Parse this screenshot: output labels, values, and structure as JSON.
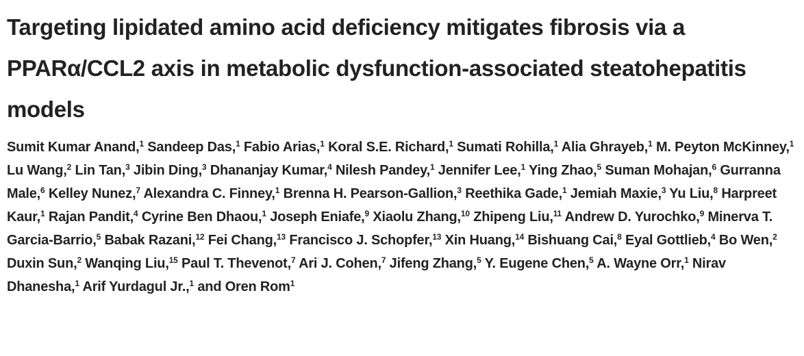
{
  "title": "Targeting lipidated amino acid deficiency mitigates fibrosis via a PPARα/CCL2 axis in metabolic dysfunction-associated steatohepatitis models",
  "authors": [
    {
      "name": "Sumit Kumar Anand,",
      "affiliation": 1
    },
    {
      "name": "Sandeep Das,",
      "affiliation": 1
    },
    {
      "name": "Fabio Arias,",
      "affiliation": 1
    },
    {
      "name": "Koral S.E. Richard,",
      "affiliation": 1
    },
    {
      "name": "Sumati Rohilla,",
      "affiliation": 1
    },
    {
      "name": "Alia Ghrayeb,",
      "affiliation": 1
    },
    {
      "name": "M. Peyton McKinney,",
      "affiliation": 1
    },
    {
      "name": "Lu Wang,",
      "affiliation": 2
    },
    {
      "name": "Lin Tan,",
      "affiliation": 3
    },
    {
      "name": "Jibin Ding,",
      "affiliation": 3
    },
    {
      "name": "Dhananjay Kumar,",
      "affiliation": 4
    },
    {
      "name": "Nilesh Pandey,",
      "affiliation": 1
    },
    {
      "name": "Jennifer Lee,",
      "affiliation": 1
    },
    {
      "name": "Ying Zhao,",
      "affiliation": 5
    },
    {
      "name": "Suman Mohajan,",
      "affiliation": 6
    },
    {
      "name": "Gurranna Male,",
      "affiliation": 6
    },
    {
      "name": "Kelley Nunez,",
      "affiliation": 7
    },
    {
      "name": "Alexandra C. Finney,",
      "affiliation": 1
    },
    {
      "name": "Brenna H. Pearson-Gallion,",
      "affiliation": 3
    },
    {
      "name": "Reethika Gade,",
      "affiliation": 1
    },
    {
      "name": "Jemiah Maxie,",
      "affiliation": 3
    },
    {
      "name": "Yu Liu,",
      "affiliation": 8
    },
    {
      "name": "Harpreet Kaur,",
      "affiliation": 1
    },
    {
      "name": "Rajan Pandit,",
      "affiliation": 4
    },
    {
      "name": "Cyrine Ben Dhaou,",
      "affiliation": 1
    },
    {
      "name": "Joseph Eniafe,",
      "affiliation": 9
    },
    {
      "name": "Xiaolu Zhang,",
      "affiliation": 10
    },
    {
      "name": "Zhipeng Liu,",
      "affiliation": 11
    },
    {
      "name": "Andrew D. Yurochko,",
      "affiliation": 9
    },
    {
      "name": "Minerva T. Garcia-Barrio,",
      "affiliation": 5
    },
    {
      "name": "Babak Razani,",
      "affiliation": 12
    },
    {
      "name": "Fei Chang,",
      "affiliation": 13
    },
    {
      "name": "Francisco J. Schopfer,",
      "affiliation": 13
    },
    {
      "name": "Xin Huang,",
      "affiliation": 14
    },
    {
      "name": "Bishuang Cai,",
      "affiliation": 8
    },
    {
      "name": "Eyal Gottlieb,",
      "affiliation": 4
    },
    {
      "name": "Bo Wen,",
      "affiliation": 2
    },
    {
      "name": "Duxin Sun,",
      "affiliation": 2
    },
    {
      "name": "Wanqing Liu,",
      "affiliation": 15
    },
    {
      "name": "Paul T. Thevenot,",
      "affiliation": 7
    },
    {
      "name": "Ari J. Cohen,",
      "affiliation": 7
    },
    {
      "name": "Jifeng Zhang,",
      "affiliation": 5
    },
    {
      "name": "Y. Eugene Chen,",
      "affiliation": 5
    },
    {
      "name": "A. Wayne Orr,",
      "affiliation": 1
    },
    {
      "name": "Nirav Dhanesha,",
      "affiliation": 1
    },
    {
      "name": "Arif Yurdagul Jr.,",
      "affiliation": 1
    },
    {
      "name": "and Oren Rom",
      "affiliation": 1
    }
  ]
}
